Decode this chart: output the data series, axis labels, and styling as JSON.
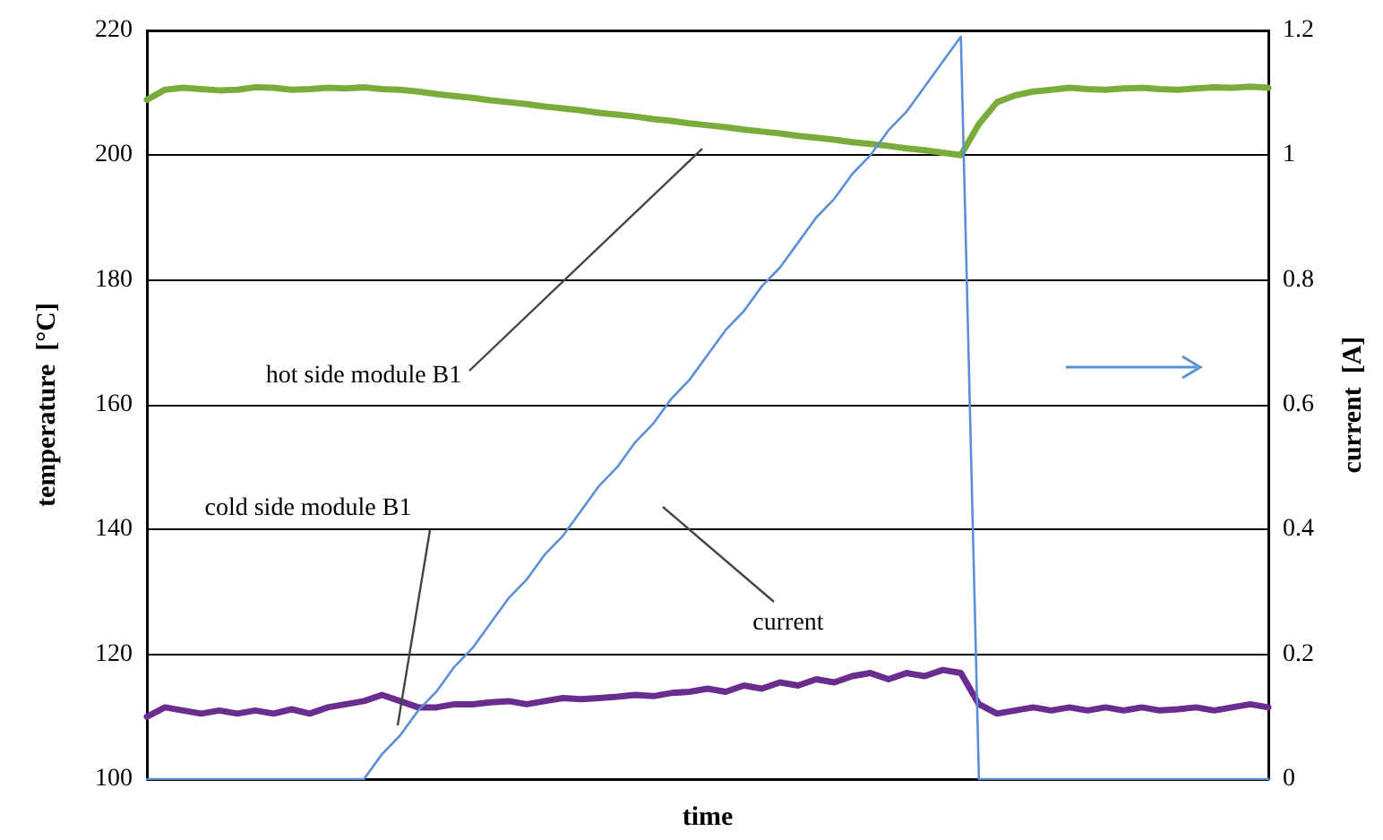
{
  "chart_data": {
    "type": "line",
    "xlabel": "time",
    "ylabel": "temperature  [°C]",
    "y2label": "current  [A]",
    "categories": [
      null,
      null,
      null,
      null,
      null,
      null,
      null,
      null,
      null,
      null,
      null,
      null,
      null,
      null,
      null,
      null,
      null,
      null,
      null,
      null,
      null,
      null,
      null,
      null,
      null,
      null,
      null,
      null,
      null,
      null,
      null,
      null,
      null,
      null,
      null,
      null,
      null,
      null,
      null,
      null,
      null,
      null,
      null,
      null,
      null,
      null,
      null,
      null,
      null,
      null,
      null,
      null,
      null,
      null,
      null,
      null,
      null,
      null,
      null,
      null,
      null,
      null,
      null
    ],
    "series": [
      {
        "color": "#7aac3c",
        "values": [
          208.9,
          210.5,
          210.8,
          210.6,
          210.4,
          210.5,
          210.9,
          210.8,
          210.5,
          210.6,
          210.8,
          210.7,
          210.9,
          210.6,
          210.5,
          210.2,
          209.8,
          209.5,
          209.2,
          208.8,
          208.5,
          208.2,
          207.8,
          207.5,
          207.2,
          206.8,
          206.5,
          206.2,
          205.8,
          205.5,
          205.1,
          204.8,
          204.5,
          204.1,
          203.8,
          203.5,
          203.1,
          202.8,
          202.5,
          202.1,
          201.8,
          201.5,
          201.1,
          200.8,
          200.4,
          200.0,
          205.0,
          208.5,
          209.6,
          210.2,
          210.5,
          210.8,
          210.6,
          210.5,
          210.7,
          210.8,
          210.6,
          210.5,
          210.7,
          210.9,
          210.8,
          211.0,
          210.8
        ]
      },
      {
        "color": "#6a2d8f",
        "values": [
          110,
          111.5,
          111,
          110.5,
          111,
          110.5,
          111,
          110.5,
          111.2,
          110.5,
          111.5,
          112,
          112.5,
          113.5,
          112.5,
          111.5,
          111.5,
          112,
          112,
          112.3,
          112.5,
          112,
          112.5,
          113,
          112.8,
          113,
          113.2,
          113.5,
          113.3,
          113.8,
          114,
          114.5,
          114,
          115,
          114.5,
          115.5,
          115,
          116,
          115.5,
          116.5,
          117,
          116,
          117,
          116.5,
          117.5,
          117,
          112,
          110.5,
          111,
          111.5,
          111,
          111.5,
          111,
          111.5,
          111,
          111.5,
          111,
          111.2,
          111.5,
          111,
          111.5,
          112,
          111.5
        ]
      },
      {
        "color": "#5b8fd6",
        "axis": "y2",
        "values": [
          0,
          0,
          0,
          0,
          0,
          0,
          0,
          0,
          0,
          0,
          0,
          0,
          0,
          0.04,
          0.07,
          0.11,
          0.14,
          0.18,
          0.21,
          0.25,
          0.29,
          0.32,
          0.36,
          0.39,
          0.43,
          0.47,
          0.5,
          0.54,
          0.57,
          0.61,
          0.64,
          0.68,
          0.72,
          0.75,
          0.79,
          0.82,
          0.86,
          0.9,
          0.93,
          0.97,
          1.0,
          1.04,
          1.07,
          1.11,
          1.15,
          1.19,
          0,
          0,
          0,
          0,
          0,
          0,
          0,
          0,
          0,
          0,
          0,
          0,
          0,
          0,
          0,
          0,
          0
        ]
      }
    ],
    "ylim": [
      100,
      220
    ],
    "yticks": [
      100,
      120,
      140,
      160,
      180,
      200,
      220
    ],
    "y2lim": [
      0,
      1.2
    ],
    "y2ticks": [
      0,
      0.2,
      0.4,
      0.6,
      0.8,
      1,
      1.2
    ],
    "grid": "y",
    "marker": "none",
    "line_style": "solid",
    "tick_labels": "y",
    "annotations": [
      "hot side module B1",
      "cold side module B1",
      "current"
    ]
  }
}
